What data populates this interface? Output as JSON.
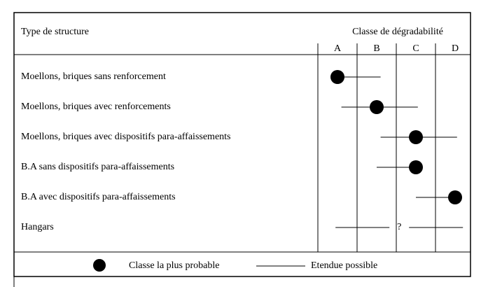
{
  "header": {
    "structure": "Type de structure",
    "class_title": "Classe de dégradabilité",
    "classes": [
      "A",
      "B",
      "C",
      "D"
    ]
  },
  "rows": [
    {
      "label": "Moellons, briques sans renforcement",
      "probable": 0.5,
      "range": [
        0.5,
        1.6
      ]
    },
    {
      "label": "Moellons, briques avec renforcements",
      "probable": 1.5,
      "range": [
        0.6,
        2.55
      ]
    },
    {
      "label": "Moellons, briques avec dispositifs para-affaissements",
      "probable": 2.5,
      "range": [
        1.6,
        3.55
      ]
    },
    {
      "label": "B.A sans dispositifs para-affaissements",
      "probable": 2.5,
      "range": [
        1.5,
        2.5
      ]
    },
    {
      "label": "B.A avec dispositifs para-affaissements",
      "probable": 3.5,
      "range": [
        2.5,
        3.5
      ]
    },
    {
      "label": "Hangars",
      "range": [
        0.45,
        3.7
      ],
      "note": "?"
    }
  ],
  "legend": {
    "probable": "Classe la plus probable",
    "range": "Etendue possible"
  }
}
